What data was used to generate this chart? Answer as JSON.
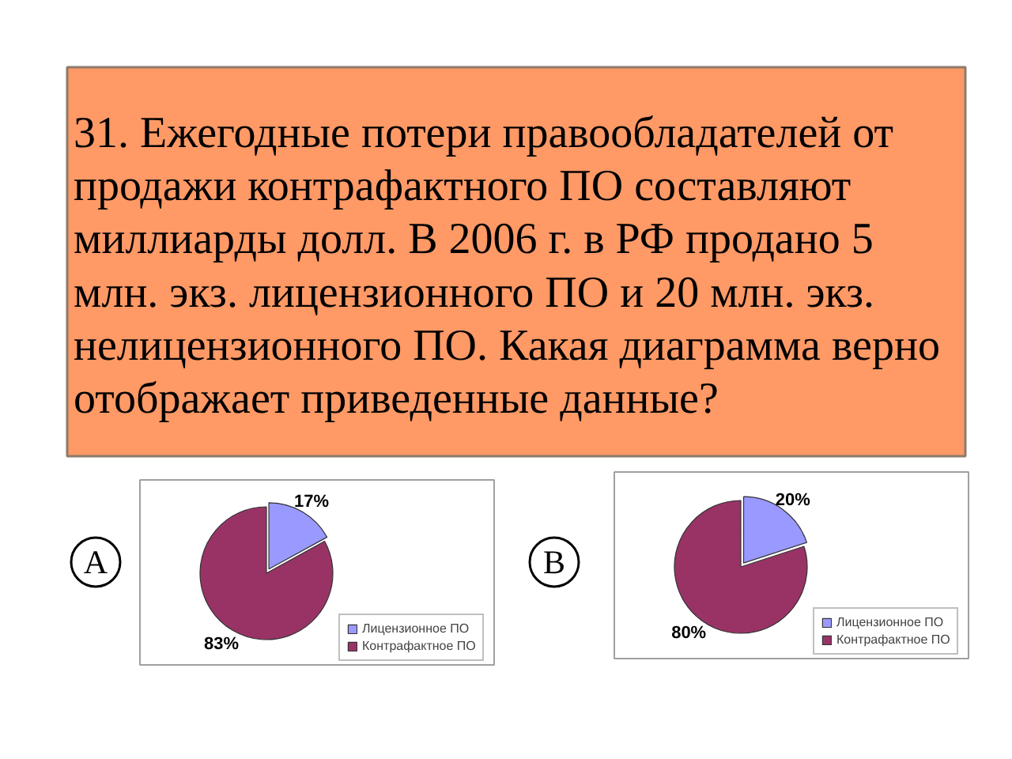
{
  "chart_data": [
    {
      "type": "other",
      "title": "31. Ежегодные потери правообладателей от\nпродажи контрафактного ПО составляют\nмиллиарды долл. В 2006 г. в РФ продано 5\nмлн. экз. лицензионного ПО и 20 млн. экз.\nнелицензионного ПО. Какая диаграмма верно\nотображает приведенные данные?"
    },
    {
      "type": "pie",
      "annotations": [
        "A"
      ],
      "categories": [
        "Лицензионное ПО",
        "Контрафактное ПО"
      ],
      "values": [
        17,
        83
      ],
      "colors": [
        "#9999ff",
        "#993366"
      ],
      "value_labels": [
        "17%",
        "83%"
      ],
      "legend": "bottom right"
    },
    {
      "type": "pie",
      "annotations": [
        "B"
      ],
      "categories": [
        "Лицензионное ПО",
        "Контрафактное ПО"
      ],
      "values": [
        20,
        80
      ],
      "colors": [
        "#9999ff",
        "#993366"
      ],
      "value_labels": [
        "20%",
        "80%"
      ],
      "legend": "bottom right"
    }
  ]
}
